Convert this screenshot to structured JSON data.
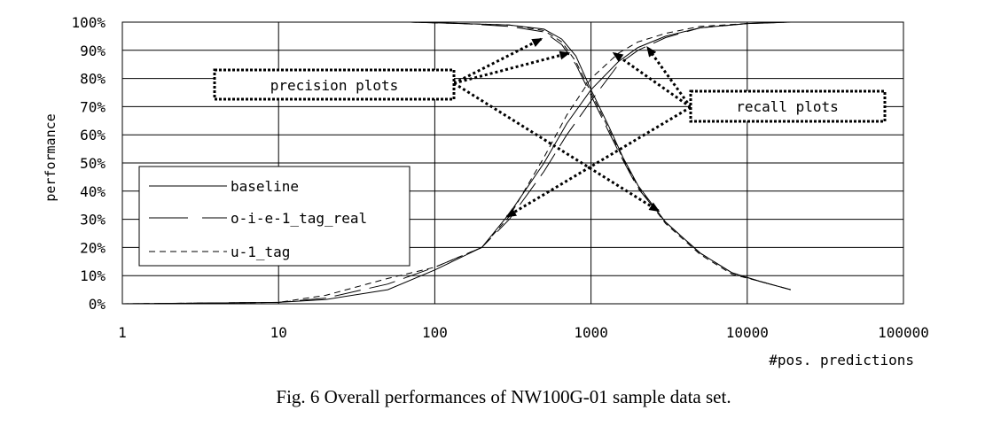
{
  "chart_data": {
    "type": "line",
    "title": "",
    "xlabel": "#pos. predictions",
    "ylabel": "performance",
    "x_scale": "log",
    "xlim": [
      1,
      100000
    ],
    "ylim": [
      0,
      100
    ],
    "grid": true,
    "x_ticks": [
      "1",
      "10",
      "100",
      "1000",
      "10000",
      "100000"
    ],
    "y_ticks": [
      "0%",
      "10%",
      "20%",
      "30%",
      "40%",
      "50%",
      "60%",
      "70%",
      "80%",
      "90%",
      "100%"
    ],
    "legend": {
      "placement": "left-middle",
      "entries": [
        "baseline",
        "o-i-e-1_tag_real",
        "u-1_tag"
      ]
    },
    "series": [
      {
        "name": "baseline",
        "group": "precision",
        "x": [
          70,
          150,
          300,
          500,
          650,
          800,
          1000,
          1300,
          1600,
          2000,
          3000,
          5000,
          8000,
          12000,
          19000
        ],
        "y": [
          100,
          99.5,
          99,
          97.5,
          94,
          88,
          76,
          63,
          52,
          42,
          29,
          18,
          11,
          8,
          5
        ]
      },
      {
        "name": "o-i-e-1_tag_real",
        "group": "precision",
        "x": [
          70,
          150,
          300,
          500,
          650,
          800,
          1000,
          1300,
          1600,
          2000,
          3000,
          5000,
          8000,
          12000,
          19000
        ],
        "y": [
          100,
          99.5,
          98.5,
          96.5,
          92,
          85,
          74,
          61,
          51,
          41,
          29,
          18,
          11,
          8,
          5
        ]
      },
      {
        "name": "u-1_tag",
        "group": "precision",
        "x": [
          70,
          150,
          300,
          500,
          650,
          800,
          1000,
          1300,
          1600,
          2000,
          3000,
          5000,
          8000,
          12000,
          19000
        ],
        "y": [
          100,
          99.5,
          99,
          97,
          93,
          86,
          75,
          62,
          51.5,
          41.5,
          28.5,
          17.5,
          10.5,
          8,
          5
        ]
      },
      {
        "name": "baseline",
        "group": "recall",
        "x": [
          1,
          10,
          20,
          50,
          100,
          200,
          300,
          500,
          700,
          1000,
          1500,
          2000,
          3000,
          5000,
          10000,
          19000
        ],
        "y": [
          0,
          0.5,
          1.5,
          5,
          12,
          20,
          32,
          50,
          64,
          76,
          86,
          91,
          95,
          98,
          99.5,
          100
        ]
      },
      {
        "name": "o-i-e-1_tag_real",
        "group": "recall",
        "x": [
          1,
          10,
          20,
          50,
          100,
          200,
          300,
          500,
          700,
          1000,
          1500,
          2000,
          3000,
          5000,
          10000,
          19000
        ],
        "y": [
          0,
          0.5,
          2,
          7,
          13,
          20,
          30,
          47,
          60,
          72,
          85,
          90,
          94.5,
          98,
          99.5,
          100
        ]
      },
      {
        "name": "u-1_tag",
        "group": "recall",
        "x": [
          1,
          10,
          20,
          50,
          100,
          200,
          300,
          500,
          700,
          1000,
          1500,
          2000,
          3000,
          5000,
          10000,
          19000
        ],
        "y": [
          0,
          0.5,
          3,
          9,
          13,
          20,
          31,
          52,
          67,
          80,
          89,
          93,
          96,
          98.5,
          99.5,
          100
        ]
      }
    ],
    "annotations": [
      {
        "text": "precision plots",
        "arrows_to": [
          {
            "x": 480,
            "y": 94
          },
          {
            "x": 720,
            "y": 89
          },
          {
            "x": 2700,
            "y": 33
          }
        ]
      },
      {
        "text": "recall plots",
        "arrows_to": [
          {
            "x": 1400,
            "y": 89
          },
          {
            "x": 2300,
            "y": 91
          },
          {
            "x": 290,
            "y": 31
          }
        ]
      }
    ]
  },
  "caption": "Fig. 6 Overall performances of NW100G-01 sample data set."
}
